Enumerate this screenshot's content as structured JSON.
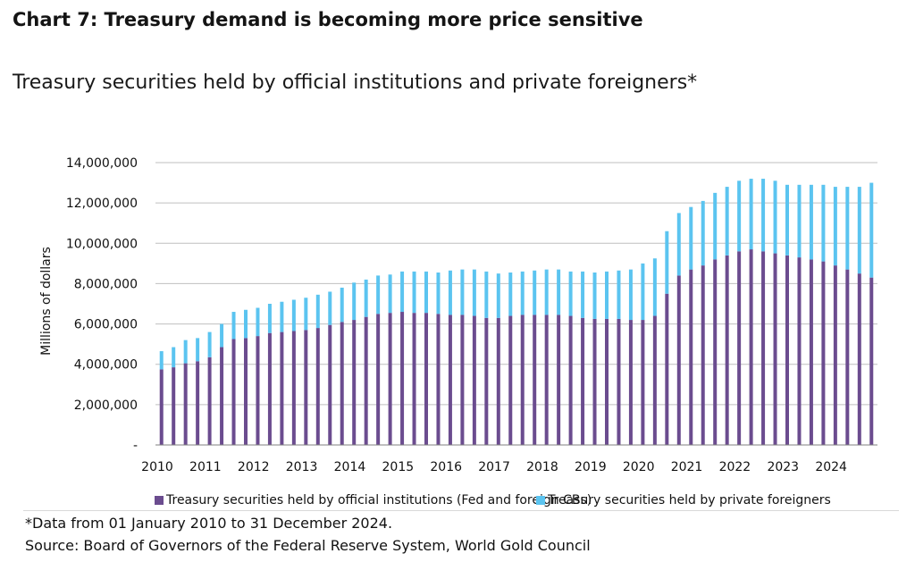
{
  "title": "Chart 7: Treasury demand is becoming more price sensitive",
  "subtitle": "Treasury securities held by official institutions and private foreigners*",
  "footnote": "*Data from 01 January 2010 to 31 December 2024.",
  "source": "Source: Board of Governors of the Federal Reserve System, World Gold Council",
  "colors": {
    "official": "#6b4c8f",
    "private": "#5bc4f0",
    "grid": "#bfbfbf",
    "axis": "#7f7f7f"
  },
  "chart_data": {
    "type": "bar",
    "stacked": true,
    "title": "Treasury securities held by official institutions and private foreigners*",
    "ylabel": "Millions of dollars",
    "ylim": [
      0,
      14000000
    ],
    "yticks": [
      0,
      2000000,
      4000000,
      6000000,
      8000000,
      10000000,
      12000000,
      14000000
    ],
    "ytick_labels": [
      "-",
      "2,000,000",
      "4,000,000",
      "6,000,000",
      "8,000,000",
      "10,000,000",
      "12,000,000",
      "14,000,000"
    ],
    "x_tick_labels": [
      "2010",
      "2011",
      "2012",
      "2013",
      "2014",
      "2015",
      "2016",
      "2017",
      "2018",
      "2019",
      "2020",
      "2021",
      "2022",
      "2023",
      "2024"
    ],
    "grid": true,
    "legend_position": "bottom",
    "categories": [
      "Q1 2010",
      "Q2 2010",
      "Q3 2010",
      "Q4 2010",
      "Q1 2011",
      "Q2 2011",
      "Q3 2011",
      "Q4 2011",
      "Q1 2012",
      "Q2 2012",
      "Q3 2012",
      "Q4 2012",
      "Q1 2013",
      "Q2 2013",
      "Q3 2013",
      "Q4 2013",
      "Q1 2014",
      "Q2 2014",
      "Q3 2014",
      "Q4 2014",
      "Q1 2015",
      "Q2 2015",
      "Q3 2015",
      "Q4 2015",
      "Q1 2016",
      "Q2 2016",
      "Q3 2016",
      "Q4 2016",
      "Q1 2017",
      "Q2 2017",
      "Q3 2017",
      "Q4 2017",
      "Q1 2018",
      "Q2 2018",
      "Q3 2018",
      "Q4 2018",
      "Q1 2019",
      "Q2 2019",
      "Q3 2019",
      "Q4 2019",
      "Q1 2020",
      "Q2 2020",
      "Q3 2020",
      "Q4 2020",
      "Q1 2021",
      "Q2 2021",
      "Q3 2021",
      "Q4 2021",
      "Q1 2022",
      "Q2 2022",
      "Q3 2022",
      "Q4 2022",
      "Q1 2023",
      "Q2 2023",
      "Q3 2023",
      "Q4 2023",
      "Q1 2024",
      "Q2 2024",
      "Q3 2024",
      "Q4 2024"
    ],
    "series": [
      {
        "name": "Treasury securities held by official institutions (Fed and foreign CBs)",
        "values": [
          3750000,
          3850000,
          4050000,
          4150000,
          4350000,
          4850000,
          5250000,
          5300000,
          5400000,
          5550000,
          5600000,
          5650000,
          5700000,
          5800000,
          5950000,
          6100000,
          6200000,
          6350000,
          6500000,
          6550000,
          6600000,
          6550000,
          6550000,
          6500000,
          6450000,
          6450000,
          6400000,
          6300000,
          6300000,
          6400000,
          6450000,
          6450000,
          6450000,
          6450000,
          6400000,
          6300000,
          6250000,
          6250000,
          6250000,
          6200000,
          6200000,
          6400000,
          7500000,
          8400000,
          8700000,
          8900000,
          9200000,
          9400000,
          9600000,
          9700000,
          9600000,
          9500000,
          9400000,
          9300000,
          9200000,
          9100000,
          8900000,
          8700000,
          8500000,
          8300000
        ]
      },
      {
        "name": "Treasury securities held by private foreigners",
        "values": [
          900000,
          1000000,
          1150000,
          1150000,
          1250000,
          1150000,
          1350000,
          1400000,
          1400000,
          1450000,
          1500000,
          1550000,
          1600000,
          1650000,
          1650000,
          1700000,
          1850000,
          1850000,
          1900000,
          1900000,
          2000000,
          2050000,
          2050000,
          2050000,
          2200000,
          2250000,
          2300000,
          2300000,
          2200000,
          2150000,
          2150000,
          2200000,
          2250000,
          2250000,
          2200000,
          2300000,
          2300000,
          2350000,
          2400000,
          2500000,
          2800000,
          2850000,
          3100000,
          3100000,
          3100000,
          3200000,
          3300000,
          3400000,
          3500000,
          3500000,
          3600000,
          3600000,
          3500000,
          3600000,
          3700000,
          3800000,
          3900000,
          4100000,
          4300000,
          4700000
        ]
      }
    ]
  }
}
